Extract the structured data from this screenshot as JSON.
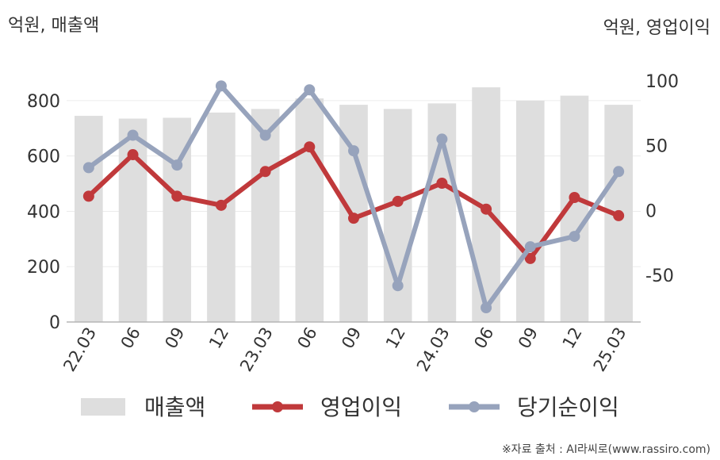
{
  "chart_data": {
    "type": "bar+line",
    "left_axis_title": "억원, 매출액",
    "right_axis_title": "억원, 영업이익",
    "categories": [
      "22.03",
      "06",
      "09",
      "12",
      "23.03",
      "06",
      "09",
      "12",
      "24.03",
      "06",
      "09",
      "12",
      "25.03"
    ],
    "left_ylim": [
      0,
      900
    ],
    "left_ticks": [
      "0",
      "200",
      "400",
      "600",
      "800"
    ],
    "right_ylim": [
      -86,
      106
    ],
    "right_ticks": [
      "-50",
      "0",
      "50",
      "100"
    ],
    "series": [
      {
        "name": "매출액",
        "type": "bar",
        "axis": "left",
        "color": "#dedede",
        "values": [
          745,
          735,
          738,
          757,
          770,
          808,
          785,
          770,
          790,
          848,
          800,
          818,
          785
        ]
      },
      {
        "name": "영업이익",
        "type": "line",
        "axis": "right",
        "color": "#c0393b",
        "values": [
          11,
          43,
          11,
          4,
          30,
          49,
          -6,
          7,
          21,
          1,
          -37,
          10,
          -4
        ]
      },
      {
        "name": "당기순이익",
        "type": "line",
        "axis": "right",
        "color": "#97a3bc",
        "values": [
          33,
          58,
          35,
          96,
          58,
          93,
          46,
          -58,
          55,
          -75,
          -28,
          -20,
          30
        ]
      }
    ],
    "grid": true,
    "legend_position": "bottom"
  },
  "source_text": "※자료 출처 : AI라씨로(www.rassiro.com)"
}
